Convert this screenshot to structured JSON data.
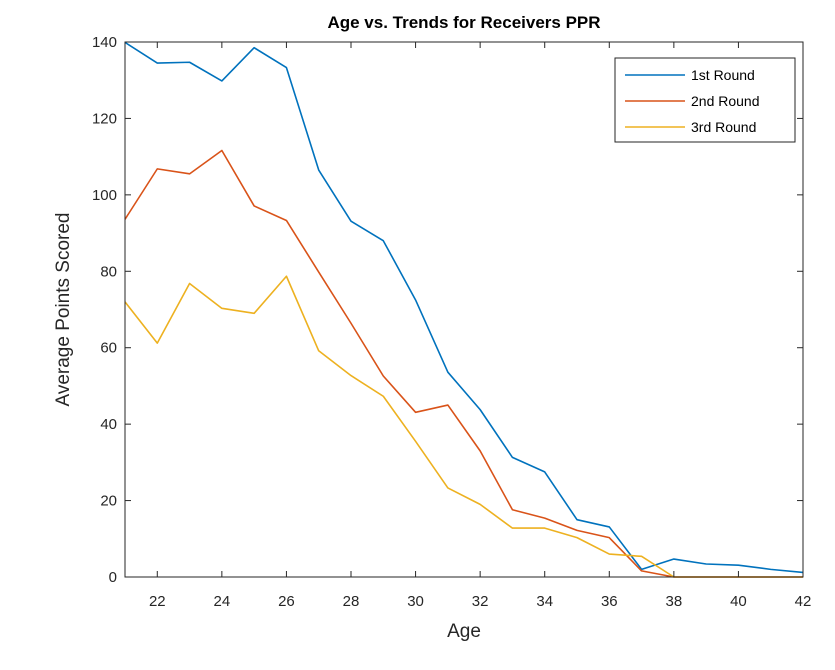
{
  "chart_data": {
    "type": "line",
    "title": "Age vs. Trends for Receivers PPR",
    "xlabel": "Age",
    "ylabel": "Average Points Scored",
    "xlim": [
      21,
      42
    ],
    "ylim": [
      0,
      140
    ],
    "xticks": [
      22,
      24,
      26,
      28,
      30,
      32,
      34,
      36,
      38,
      40,
      42
    ],
    "yticks": [
      0,
      20,
      40,
      60,
      80,
      100,
      120,
      140
    ],
    "grid": false,
    "legend_position": "top-right",
    "x": [
      21,
      22,
      23,
      24,
      25,
      26,
      27,
      28,
      29,
      30,
      31,
      32,
      33,
      34,
      35,
      36,
      37,
      38,
      39,
      40,
      41,
      42
    ],
    "series": [
      {
        "name": "1st Round",
        "color": "#0072BD",
        "values": [
          139.9,
          134.5,
          134.7,
          129.8,
          138.5,
          133.3,
          106.5,
          93.1,
          88.0,
          72.5,
          53.6,
          43.8,
          31.3,
          27.5,
          15.0,
          13.1,
          2.0,
          4.7,
          3.4,
          3.1,
          2.0,
          1.2
        ]
      },
      {
        "name": "2nd Round",
        "color": "#D95319",
        "values": [
          93.6,
          106.8,
          105.5,
          111.6,
          97.1,
          93.3,
          79.8,
          66.4,
          52.6,
          43.1,
          45.0,
          33.0,
          17.6,
          15.4,
          12.2,
          10.3,
          1.6,
          0,
          0,
          0,
          0,
          0
        ]
      },
      {
        "name": "3rd Round",
        "color": "#EDB120",
        "values": [
          72.0,
          61.2,
          76.8,
          70.3,
          69.0,
          78.7,
          59.2,
          52.7,
          47.3,
          35.5,
          23.3,
          19.0,
          12.8,
          12.8,
          10.3,
          6.0,
          5.4,
          0,
          0,
          0,
          0,
          0
        ]
      }
    ]
  }
}
